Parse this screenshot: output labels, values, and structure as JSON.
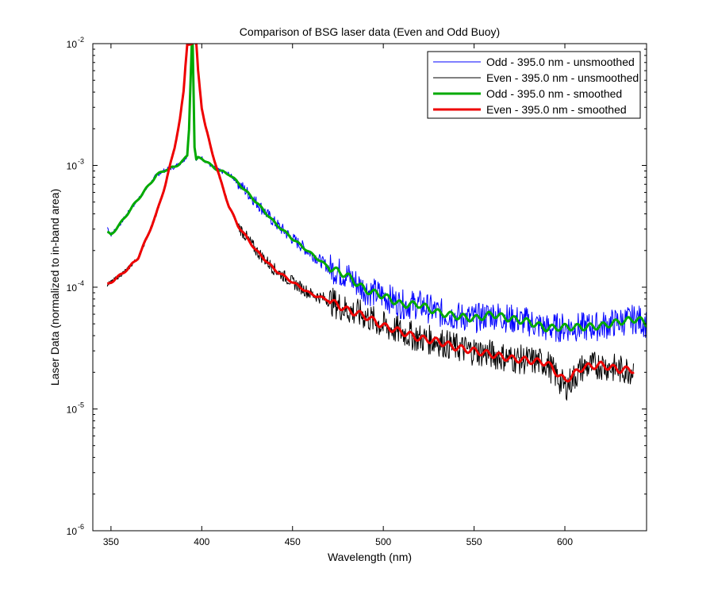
{
  "chart_data": {
    "type": "line",
    "title": "Comparison of BSG laser data (Even and Odd Buoy)",
    "xlabel": "Wavelength (nm)",
    "ylabel": "Laser Data (normalized to in-band area)",
    "xlim": [
      340,
      645
    ],
    "ylim": [
      1e-06,
      0.01
    ],
    "yscale": "log",
    "grid": false,
    "legend_position": "top-right",
    "x_ticks": [
      350,
      400,
      450,
      500,
      550,
      600
    ],
    "x_tick_labels": [
      "350",
      "400",
      "450",
      "500",
      "550",
      "600"
    ],
    "y_ticks": [
      1e-06,
      1e-05,
      0.0001,
      0.001,
      0.01
    ],
    "y_tick_labels": [
      {
        "base": "10",
        "exp": "-6"
      },
      {
        "base": "10",
        "exp": "-5"
      },
      {
        "base": "10",
        "exp": "-4"
      },
      {
        "base": "10",
        "exp": "-3"
      },
      {
        "base": "10",
        "exp": "-2"
      }
    ],
    "series": [
      {
        "name": "Odd - 395.0 nm - unsmoothed",
        "color": "#0000ff",
        "line_width": 1,
        "noisy": true,
        "x": [
          348,
          350,
          355,
          360,
          365,
          370,
          375,
          380,
          385,
          390,
          392,
          393,
          394,
          394.5,
          395,
          395.5,
          396,
          397,
          398,
          400,
          405,
          410,
          415,
          420,
          430,
          440,
          450,
          460,
          470,
          480,
          490,
          500,
          510,
          520,
          530,
          540,
          550,
          560,
          570,
          580,
          590,
          600,
          610,
          620,
          630,
          640,
          645
        ],
        "y": [
          0.00031,
          0.00027,
          0.00033,
          0.00042,
          0.00053,
          0.00066,
          0.00083,
          0.00092,
          0.00097,
          0.0011,
          0.0012,
          0.002,
          0.006,
          0.01,
          0.01,
          0.004,
          0.0014,
          0.0011,
          0.00115,
          0.00115,
          0.001,
          0.0009,
          0.00085,
          0.00072,
          0.0005,
          0.00034,
          0.00025,
          0.00019,
          0.000145,
          0.000125,
          9.5e-05,
          8.5e-05,
          7.2e-05,
          7.2e-05,
          6.2e-05,
          5.8e-05,
          5.5e-05,
          6e-05,
          5.5e-05,
          5.2e-05,
          4.6e-05,
          4.7e-05,
          4.7e-05,
          4.8e-05,
          5.2e-05,
          5.5e-05,
          5e-05
        ]
      },
      {
        "name": "Even - 395.0 nm - unsmoothed",
        "color": "#000000",
        "line_width": 1,
        "noisy": true,
        "x": [
          348,
          350,
          355,
          360,
          365,
          370,
          375,
          380,
          385,
          388,
          390,
          391,
          392,
          393,
          394,
          395,
          396,
          397,
          398,
          400,
          402,
          405,
          410,
          415,
          420,
          430,
          440,
          450,
          460,
          470,
          480,
          490,
          500,
          510,
          520,
          530,
          540,
          550,
          560,
          570,
          580,
          590,
          600,
          610,
          620,
          630,
          638
        ],
        "y": [
          0.000105,
          0.00011,
          0.000125,
          0.000145,
          0.000175,
          0.00026,
          0.0004,
          0.0007,
          0.0014,
          0.0024,
          0.004,
          0.0065,
          0.01,
          0.01,
          0.01,
          0.01,
          0.01,
          0.01,
          0.006,
          0.003,
          0.0021,
          0.0014,
          0.00078,
          0.00046,
          0.00032,
          0.0002,
          0.00014,
          0.00011,
          8.8e-05,
          7.8e-05,
          6.5e-05,
          5.8e-05,
          4.8e-05,
          4.3e-05,
          3.8e-05,
          3.6e-05,
          3.2e-05,
          3e-05,
          2.8e-05,
          2.6e-05,
          2.5e-05,
          2.4e-05,
          1.5e-05,
          2.2e-05,
          2.3e-05,
          2.1e-05,
          2.1e-05
        ]
      },
      {
        "name": "Odd - 395.0 nm - smoothed",
        "color": "#00aa00",
        "line_width": 3,
        "noisy": false,
        "x": [
          348,
          350,
          355,
          360,
          365,
          370,
          375,
          380,
          385,
          390,
          392,
          393,
          394,
          394.5,
          395,
          395.5,
          396,
          397,
          398,
          400,
          405,
          410,
          415,
          420,
          430,
          440,
          450,
          460,
          470,
          480,
          490,
          500,
          510,
          520,
          530,
          540,
          550,
          560,
          570,
          580,
          590,
          600,
          610,
          620,
          630,
          640,
          645
        ],
        "y": [
          0.00028,
          0.00027,
          0.00033,
          0.00042,
          0.00053,
          0.00066,
          0.00083,
          0.00092,
          0.00097,
          0.0011,
          0.0012,
          0.002,
          0.006,
          0.01,
          0.01,
          0.004,
          0.0014,
          0.0011,
          0.00115,
          0.00115,
          0.001,
          0.0009,
          0.00085,
          0.00072,
          0.0005,
          0.00034,
          0.00025,
          0.00019,
          0.000145,
          0.000125,
          9.5e-05,
          8.5e-05,
          7.2e-05,
          7.2e-05,
          6.2e-05,
          5.8e-05,
          5.5e-05,
          6e-05,
          5.5e-05,
          5.2e-05,
          4.6e-05,
          4.7e-05,
          4.7e-05,
          4.8e-05,
          5.2e-05,
          5.5e-05,
          5e-05
        ]
      },
      {
        "name": "Even - 395.0 nm - smoothed",
        "color": "#ee0000",
        "line_width": 3,
        "noisy": false,
        "x": [
          348,
          350,
          355,
          360,
          365,
          370,
          375,
          380,
          385,
          388,
          390,
          391,
          392,
          393,
          394,
          395,
          396,
          397,
          398,
          400,
          402,
          405,
          410,
          415,
          420,
          430,
          440,
          450,
          460,
          470,
          480,
          490,
          500,
          510,
          520,
          530,
          540,
          550,
          560,
          570,
          580,
          590,
          600,
          610,
          620,
          630,
          638
        ],
        "y": [
          0.000105,
          0.00011,
          0.000125,
          0.000145,
          0.000175,
          0.00026,
          0.0004,
          0.0007,
          0.0014,
          0.0024,
          0.004,
          0.0065,
          0.01,
          0.01,
          0.01,
          0.01,
          0.01,
          0.01,
          0.006,
          0.003,
          0.0021,
          0.0014,
          0.00078,
          0.00046,
          0.00032,
          0.0002,
          0.00014,
          0.00011,
          8.8e-05,
          7.8e-05,
          6.5e-05,
          5.8e-05,
          4.8e-05,
          4.3e-05,
          3.8e-05,
          3.6e-05,
          3.2e-05,
          3e-05,
          2.8e-05,
          2.6e-05,
          2.5e-05,
          2.4e-05,
          1.7e-05,
          2.2e-05,
          2.3e-05,
          2.1e-05,
          2.1e-05
        ]
      }
    ]
  }
}
